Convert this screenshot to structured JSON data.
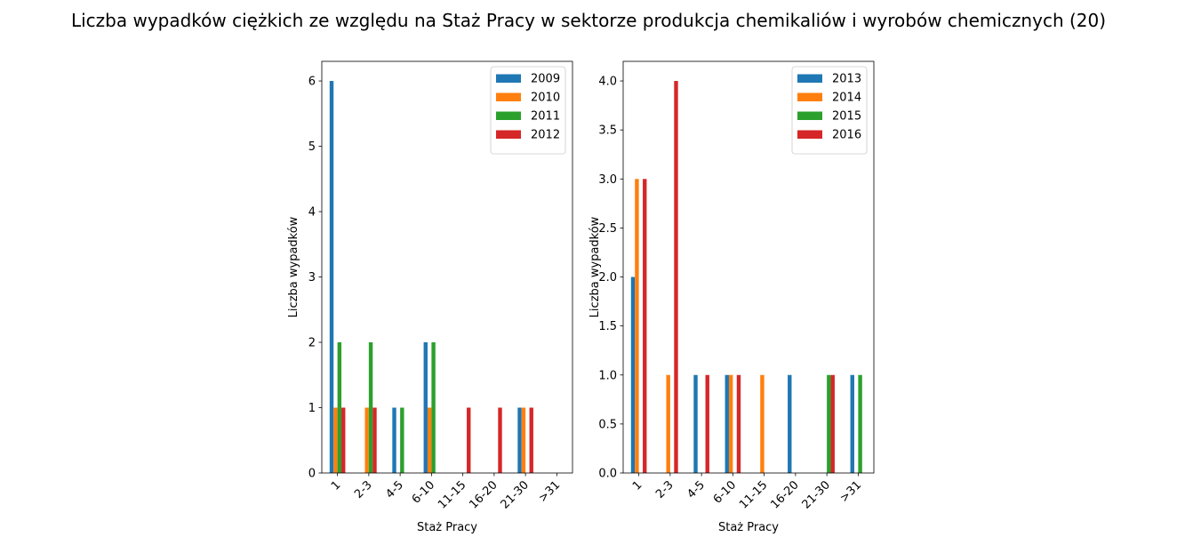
{
  "title": "Liczba wypadków ciężkich ze względu na Staż Pracy w sektorze produkcja chemikaliów i wyrobów  chemicznych (20)",
  "colors": [
    "#1f77b4",
    "#ff7f0e",
    "#2ca02c",
    "#d62728"
  ],
  "chart_data": [
    {
      "type": "bar",
      "xlabel": "Staż Pracy",
      "ylabel": "Liczba wypadków",
      "ylim": [
        0,
        6.3
      ],
      "yticks": [
        "0",
        "1",
        "2",
        "3",
        "4",
        "5",
        "6"
      ],
      "legend_position": "top-right",
      "categories": [
        "1",
        "2-3",
        "4-5",
        "6-10",
        "11-15",
        "16-20",
        "21-30",
        ">31"
      ],
      "series": [
        {
          "name": "2009",
          "values": [
            6,
            0,
            1,
            2,
            0,
            0,
            1,
            0
          ]
        },
        {
          "name": "2010",
          "values": [
            1,
            1,
            0,
            1,
            0,
            0,
            1,
            0
          ]
        },
        {
          "name": "2011",
          "values": [
            2,
            2,
            1,
            2,
            0,
            0,
            0,
            0
          ]
        },
        {
          "name": "2012",
          "values": [
            1,
            1,
            0,
            0,
            1,
            1,
            1,
            0
          ]
        }
      ]
    },
    {
      "type": "bar",
      "xlabel": "Staż Pracy",
      "ylabel": "Liczba wypadków",
      "ylim": [
        0,
        4.2
      ],
      "yticks": [
        "0.0",
        "0.5",
        "1.0",
        "1.5",
        "2.0",
        "2.5",
        "3.0",
        "3.5",
        "4.0"
      ],
      "legend_position": "top-right",
      "categories": [
        "1",
        "2-3",
        "4-5",
        "6-10",
        "11-15",
        "16-20",
        "21-30",
        ">31"
      ],
      "series": [
        {
          "name": "2013",
          "values": [
            2,
            0,
            1,
            1,
            0,
            1,
            0,
            1
          ]
        },
        {
          "name": "2014",
          "values": [
            3,
            1,
            0,
            1,
            1,
            0,
            0,
            0
          ]
        },
        {
          "name": "2015",
          "values": [
            0,
            0,
            0,
            0,
            0,
            0,
            1,
            1
          ]
        },
        {
          "name": "2016",
          "values": [
            3,
            4,
            1,
            1,
            0,
            0,
            1,
            0
          ]
        }
      ]
    }
  ]
}
